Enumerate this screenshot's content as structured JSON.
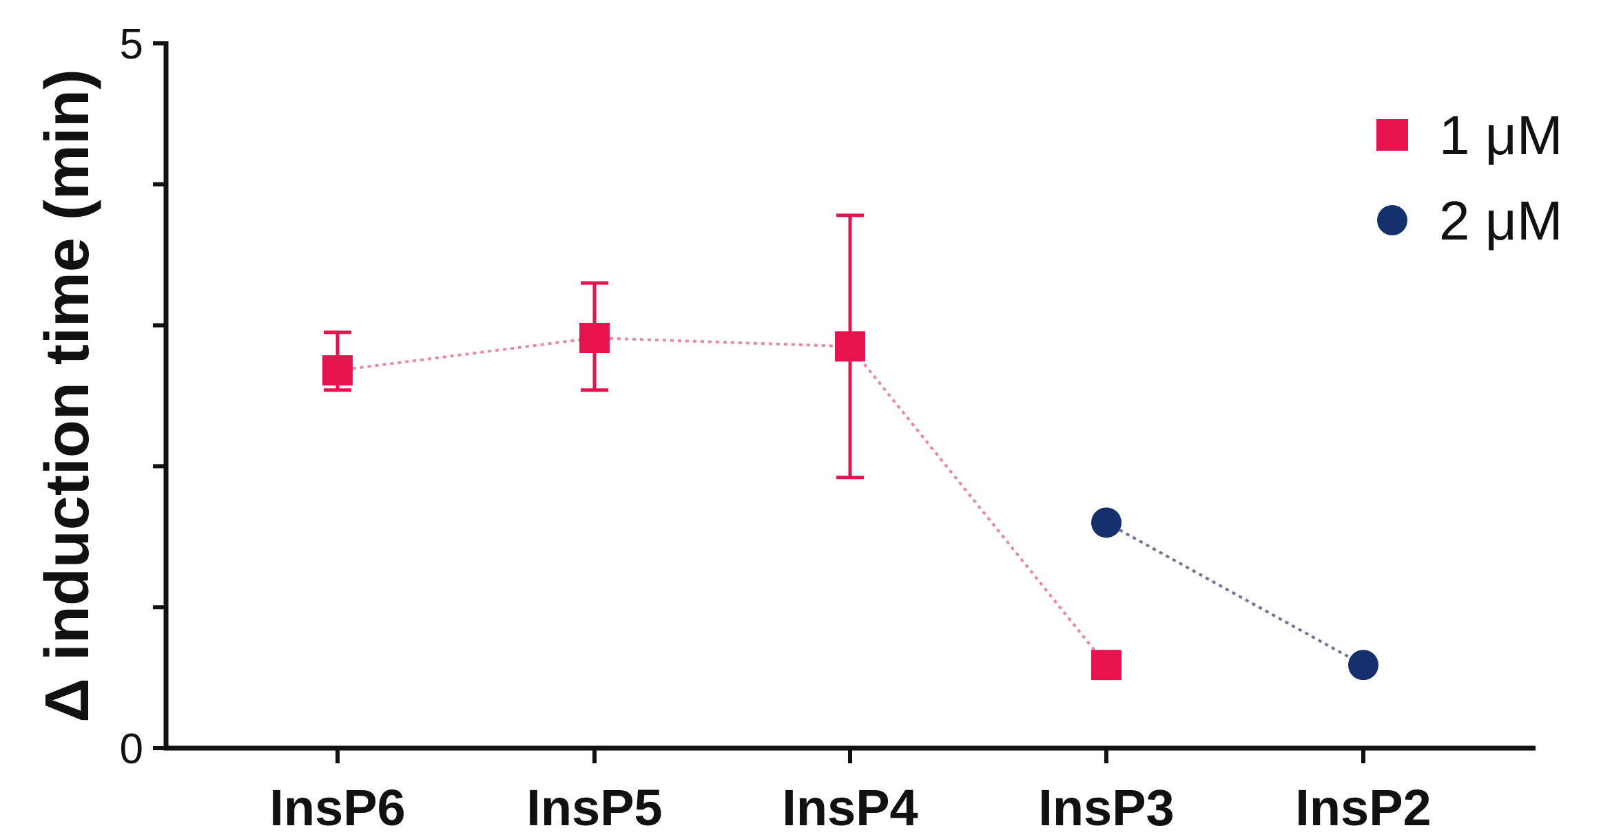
{
  "chart_data": {
    "type": "line",
    "title": "",
    "xlabel": "",
    "ylabel": "Δ induction time (min)",
    "categories": [
      "InsP6",
      "InsP5",
      "InsP4",
      "InsP3",
      "InsP2"
    ],
    "ylim": [
      0,
      5
    ],
    "yticks": [
      0,
      1,
      2,
      3,
      4,
      5
    ],
    "ytick_labels": [
      "0",
      "",
      "",
      "",
      "",
      "5"
    ],
    "grid": false,
    "legend_position": "top-right",
    "series": [
      {
        "name": "1 μM",
        "marker": "square",
        "color": "#e8124f",
        "line_style": "dotted",
        "values": [
          2.68,
          2.91,
          2.85,
          0.59,
          null
        ],
        "error_low": [
          2.54,
          2.54,
          1.92,
          null,
          null
        ],
        "error_high": [
          2.95,
          3.3,
          3.78,
          null,
          null
        ]
      },
      {
        "name": "2 μM",
        "marker": "circle",
        "color": "#15306b",
        "line_style": "dotted",
        "values": [
          null,
          null,
          null,
          1.6,
          0.59
        ]
      }
    ]
  }
}
